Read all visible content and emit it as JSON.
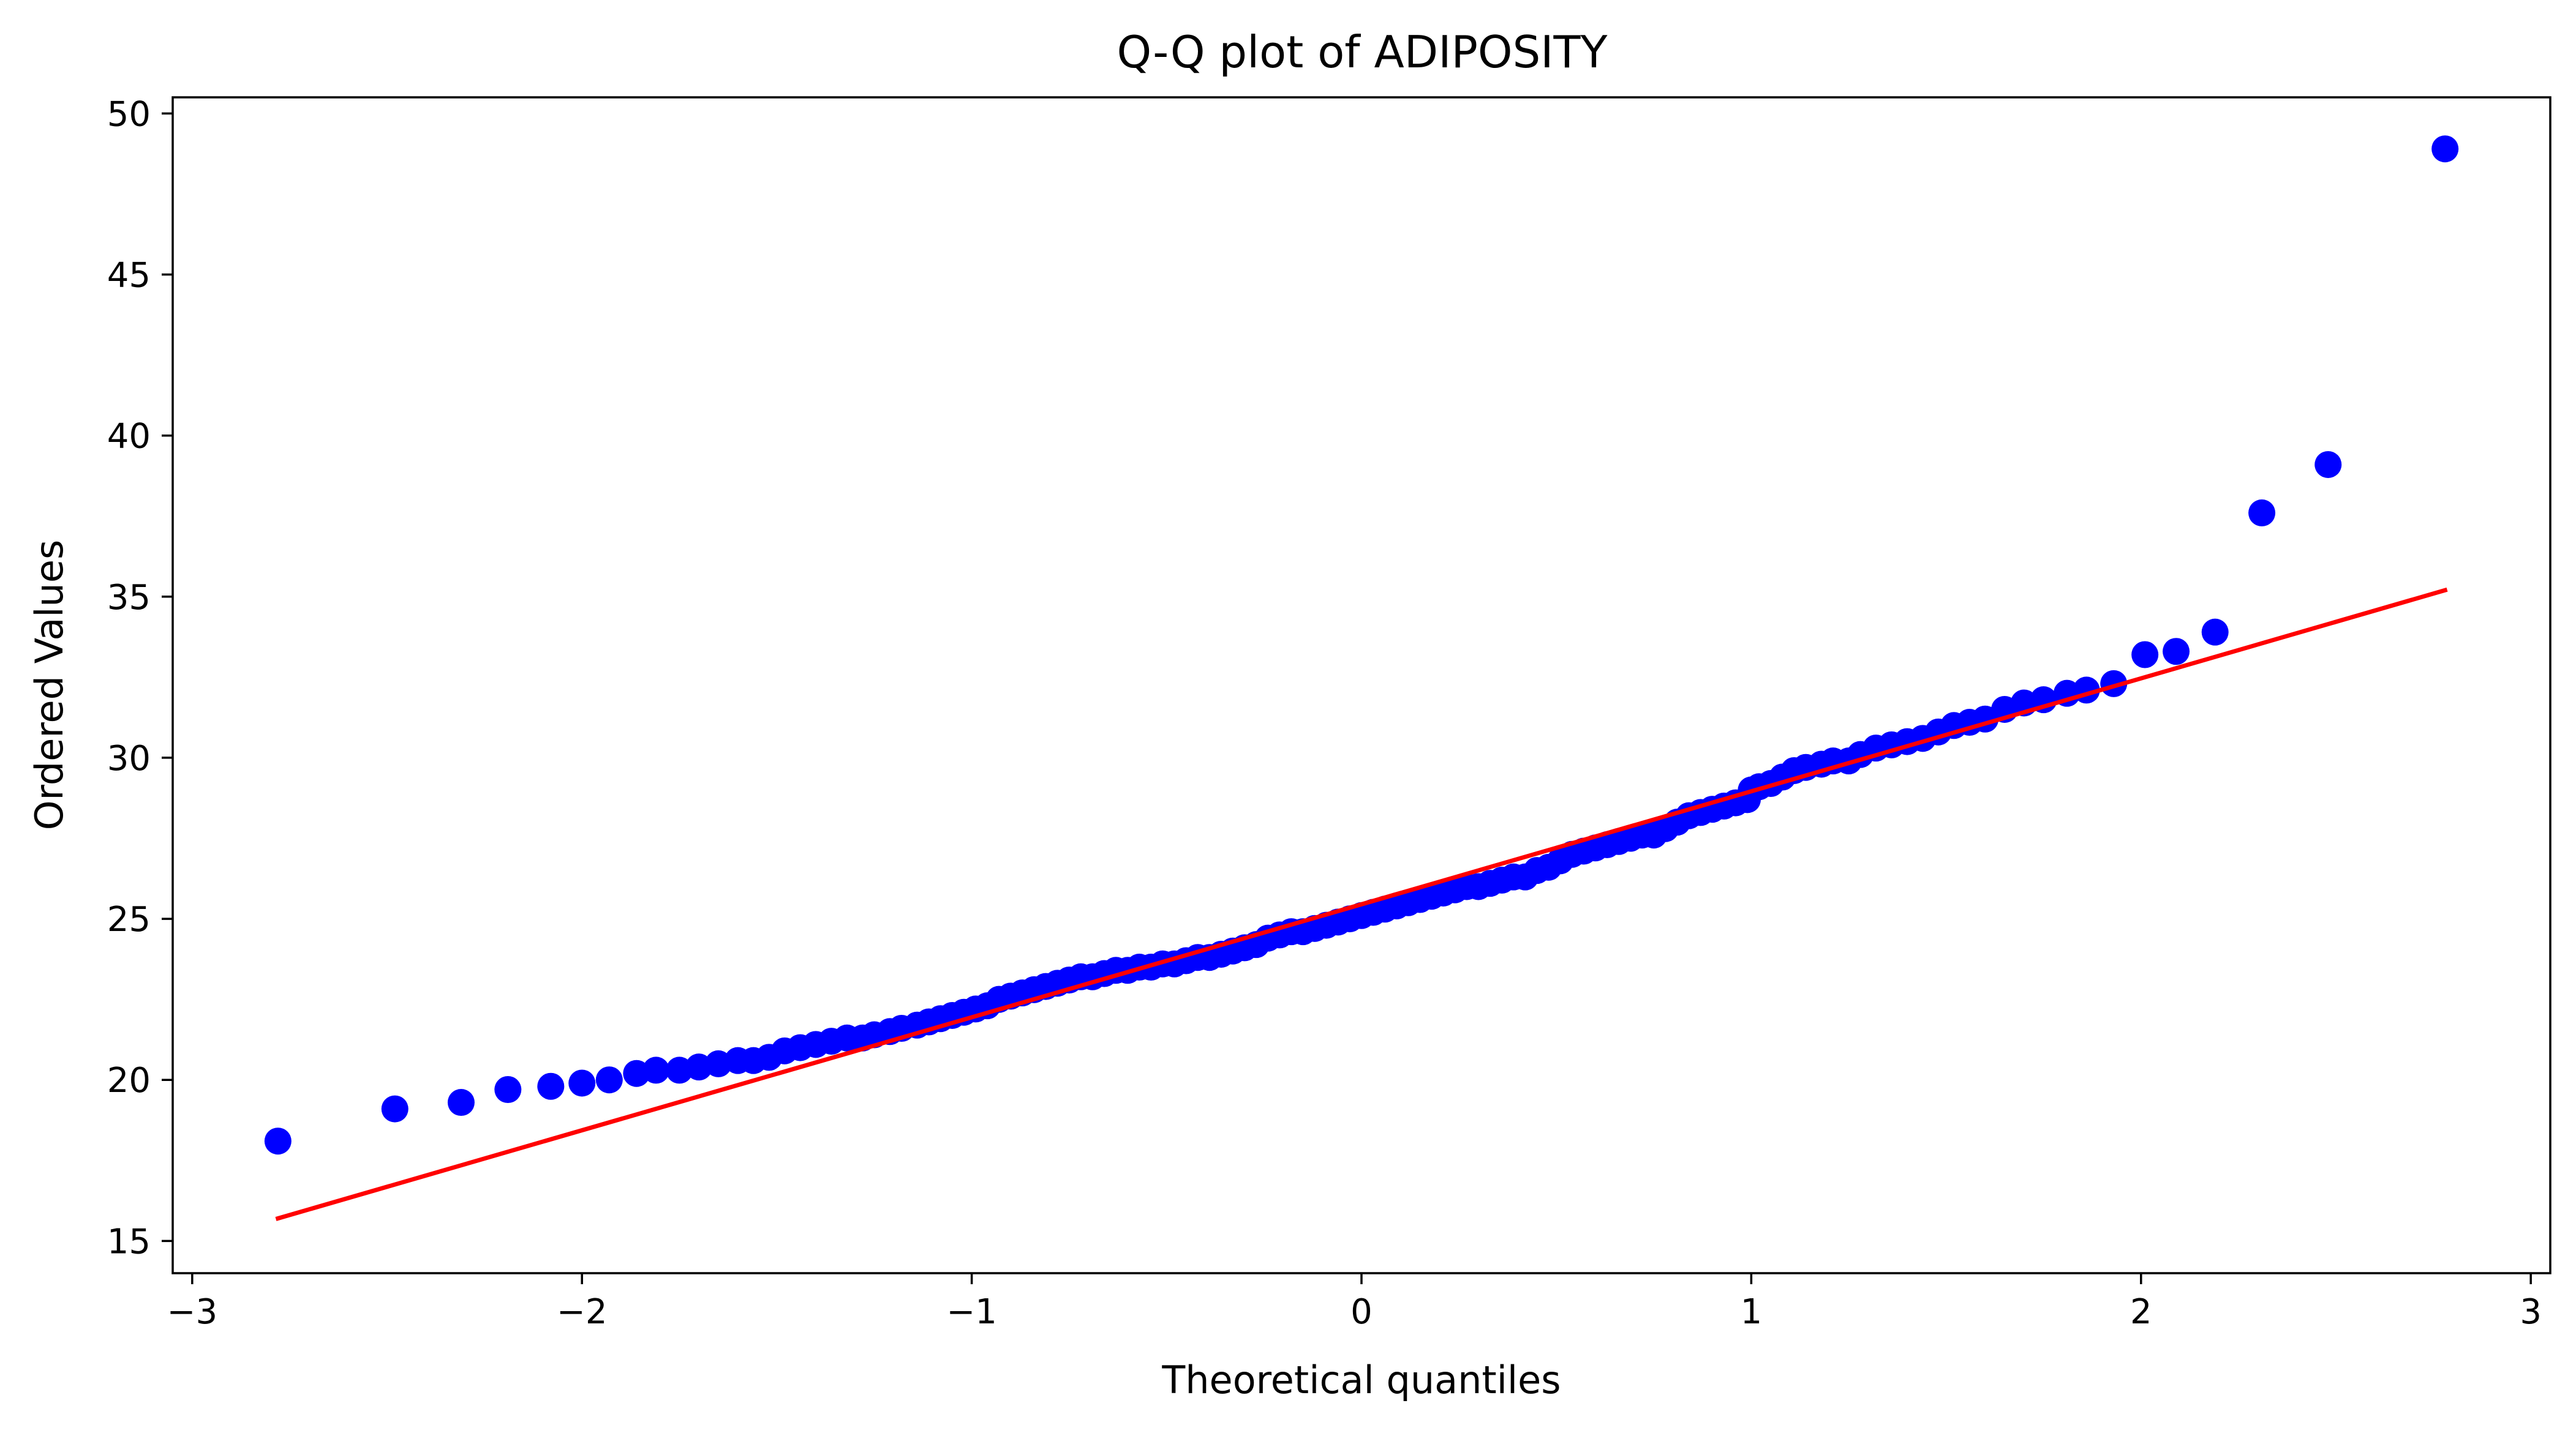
{
  "chart_data": {
    "type": "scatter",
    "title": "Q-Q plot of ADIPOSITY",
    "xlabel": "Theoretical quantiles",
    "ylabel": "Ordered Values",
    "xlim": [
      -3.05,
      3.05
    ],
    "ylim": [
      14.0,
      50.5
    ],
    "xticks": [
      -3,
      -2,
      -1,
      0,
      1,
      2,
      3
    ],
    "xtick_labels": [
      "−3",
      "−2",
      "−1",
      "0",
      "1",
      "2",
      "3"
    ],
    "yticks": [
      15,
      20,
      25,
      30,
      35,
      40,
      45,
      50
    ],
    "ytick_labels": [
      "15",
      "20",
      "25",
      "30",
      "35",
      "40",
      "45",
      "50"
    ],
    "grid": false,
    "colors": {
      "points": "#0000ff",
      "fit_line": "#ff0000",
      "axes": "#000000",
      "background": "#ffffff"
    },
    "series": [
      {
        "kind": "points",
        "x": [
          -2.78,
          -2.48,
          -2.31,
          -2.19,
          -2.08,
          -2.0,
          -1.93,
          -1.86,
          -1.81,
          -1.75,
          -1.7,
          -1.65,
          -1.6,
          -1.56,
          -1.52,
          -1.48,
          -1.44,
          -1.4,
          -1.36,
          -1.32,
          -1.28,
          -1.25,
          -1.21,
          -1.18,
          -1.14,
          -1.11,
          -1.08,
          -1.05,
          -1.02,
          -0.99,
          -0.96,
          -0.93,
          -0.9,
          -0.87,
          -0.84,
          -0.81,
          -0.78,
          -0.75,
          -0.72,
          -0.69,
          -0.66,
          -0.63,
          -0.6,
          -0.57,
          -0.54,
          -0.51,
          -0.48,
          -0.45,
          -0.42,
          -0.39,
          -0.36,
          -0.33,
          -0.3,
          -0.27,
          -0.24,
          -0.21,
          -0.18,
          -0.15,
          -0.12,
          -0.09,
          -0.06,
          -0.03,
          0.0,
          0.03,
          0.06,
          0.09,
          0.12,
          0.15,
          0.18,
          0.21,
          0.24,
          0.27,
          0.3,
          0.33,
          0.36,
          0.39,
          0.42,
          0.45,
          0.48,
          0.51,
          0.54,
          0.57,
          0.6,
          0.63,
          0.66,
          0.69,
          0.72,
          0.75,
          0.78,
          0.81,
          0.84,
          0.87,
          0.9,
          0.93,
          0.96,
          0.99,
          1.0,
          1.02,
          1.05,
          1.08,
          1.11,
          1.14,
          1.18,
          1.21,
          1.25,
          1.28,
          1.32,
          1.36,
          1.4,
          1.44,
          1.48,
          1.52,
          1.56,
          1.6,
          1.65,
          1.7,
          1.75,
          1.81,
          1.86,
          1.93,
          2.01,
          2.09,
          2.19,
          2.31,
          2.48,
          2.78
        ],
        "y": [
          18.1,
          19.1,
          19.3,
          19.7,
          19.8,
          19.9,
          20.0,
          20.2,
          20.3,
          20.3,
          20.4,
          20.5,
          20.6,
          20.6,
          20.7,
          20.9,
          21.0,
          21.1,
          21.2,
          21.3,
          21.3,
          21.4,
          21.5,
          21.6,
          21.7,
          21.8,
          21.9,
          22.0,
          22.1,
          22.2,
          22.3,
          22.5,
          22.6,
          22.7,
          22.8,
          22.9,
          23.0,
          23.1,
          23.2,
          23.2,
          23.3,
          23.4,
          23.4,
          23.5,
          23.5,
          23.6,
          23.6,
          23.7,
          23.8,
          23.8,
          23.9,
          24.0,
          24.1,
          24.2,
          24.4,
          24.5,
          24.6,
          24.6,
          24.7,
          24.8,
          24.9,
          25.0,
          25.1,
          25.2,
          25.3,
          25.4,
          25.5,
          25.6,
          25.7,
          25.8,
          25.9,
          26.0,
          26.0,
          26.1,
          26.2,
          26.3,
          26.3,
          26.5,
          26.6,
          26.8,
          27.0,
          27.1,
          27.2,
          27.3,
          27.4,
          27.5,
          27.6,
          27.6,
          27.8,
          28.0,
          28.2,
          28.3,
          28.4,
          28.5,
          28.6,
          28.7,
          29.0,
          29.1,
          29.2,
          29.4,
          29.6,
          29.7,
          29.8,
          29.9,
          29.9,
          30.1,
          30.3,
          30.4,
          30.5,
          30.6,
          30.8,
          31.0,
          31.1,
          31.2,
          31.5,
          31.7,
          31.8,
          32.0,
          32.1,
          32.3,
          33.2,
          33.3,
          33.9,
          37.6,
          39.1,
          48.9
        ]
      },
      {
        "kind": "fit_line",
        "x": [
          -2.78,
          2.78
        ],
        "y": [
          15.7,
          35.2
        ]
      }
    ]
  }
}
